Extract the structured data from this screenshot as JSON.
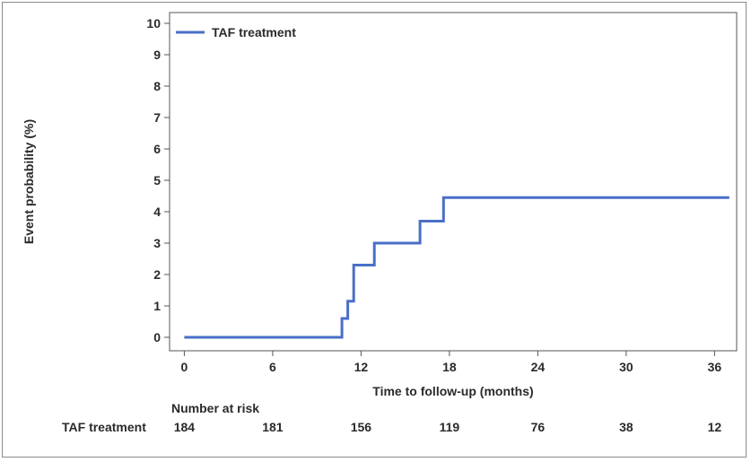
{
  "chart_data": {
    "type": "line",
    "xlabel": "Time to follow-up (months)",
    "ylabel": "Event probability (%)",
    "xlim": [
      -1,
      37.5
    ],
    "ylim": [
      0,
      10
    ],
    "x_ticks": [
      0,
      6,
      12,
      18,
      24,
      30,
      36
    ],
    "y_ticks": [
      0,
      1,
      2,
      3,
      4,
      5,
      6,
      7,
      8,
      9,
      10
    ],
    "grid": false,
    "legend_position": "top-left",
    "series": [
      {
        "name": "TAF treatment",
        "color": "#4a6fc8",
        "step": true,
        "x": [
          0,
          10.7,
          11.1,
          11.5,
          12.9,
          16.0,
          17.6,
          37.0
        ],
        "y": [
          0,
          0.6,
          1.15,
          2.3,
          3.0,
          3.7,
          4.45,
          4.45
        ]
      }
    ],
    "risk_table": {
      "title": "Number at risk",
      "row_label": "TAF treatment",
      "times": [
        0,
        6,
        12,
        18,
        24,
        30,
        36
      ],
      "counts": [
        "184",
        "181",
        "156",
        "119",
        "76",
        "38",
        "12"
      ]
    }
  }
}
